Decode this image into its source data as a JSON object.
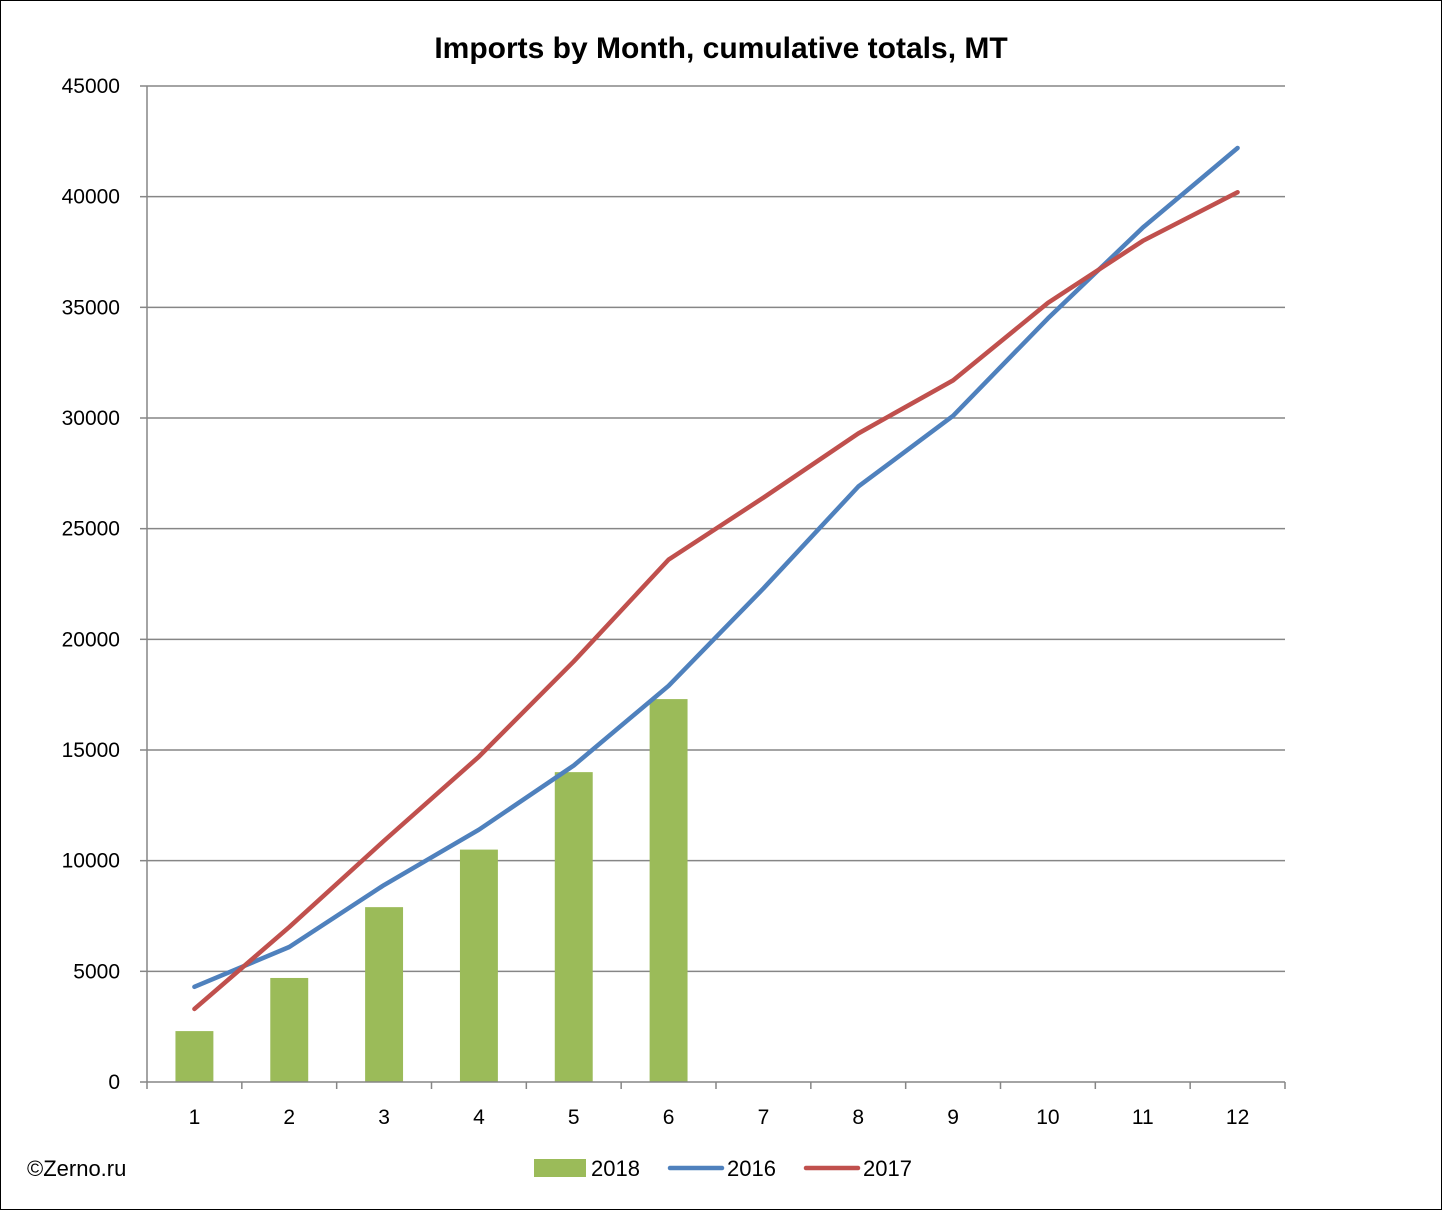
{
  "chart_data": {
    "type": "bar",
    "title": "Imports by Month, cumulative totals, MT",
    "xlabel": "",
    "ylabel": "",
    "categories": [
      "1",
      "2",
      "3",
      "4",
      "5",
      "6",
      "7",
      "8",
      "9",
      "10",
      "11",
      "12"
    ],
    "ylim": [
      0,
      45000
    ],
    "yticks": [
      0,
      5000,
      10000,
      15000,
      20000,
      25000,
      30000,
      35000,
      40000,
      45000
    ],
    "grid": "horizontal",
    "legend_position": "bottom",
    "series": [
      {
        "name": "2018",
        "kind": "bar",
        "color": "#9BBB59",
        "values": [
          2300,
          4700,
          7900,
          10500,
          14000,
          17300,
          null,
          null,
          null,
          null,
          null,
          null
        ]
      },
      {
        "name": "2016",
        "kind": "line",
        "color": "#4F81BD",
        "values": [
          4300,
          6100,
          8900,
          11400,
          14300,
          17900,
          22300,
          26900,
          30100,
          34500,
          38600,
          42200
        ]
      },
      {
        "name": "2017",
        "kind": "line",
        "color": "#C0504D",
        "values": [
          3300,
          7000,
          10900,
          14700,
          19000,
          23600,
          26400,
          29300,
          31700,
          35200,
          38000,
          40200
        ]
      }
    ]
  },
  "credit": "©Zerno.ru"
}
